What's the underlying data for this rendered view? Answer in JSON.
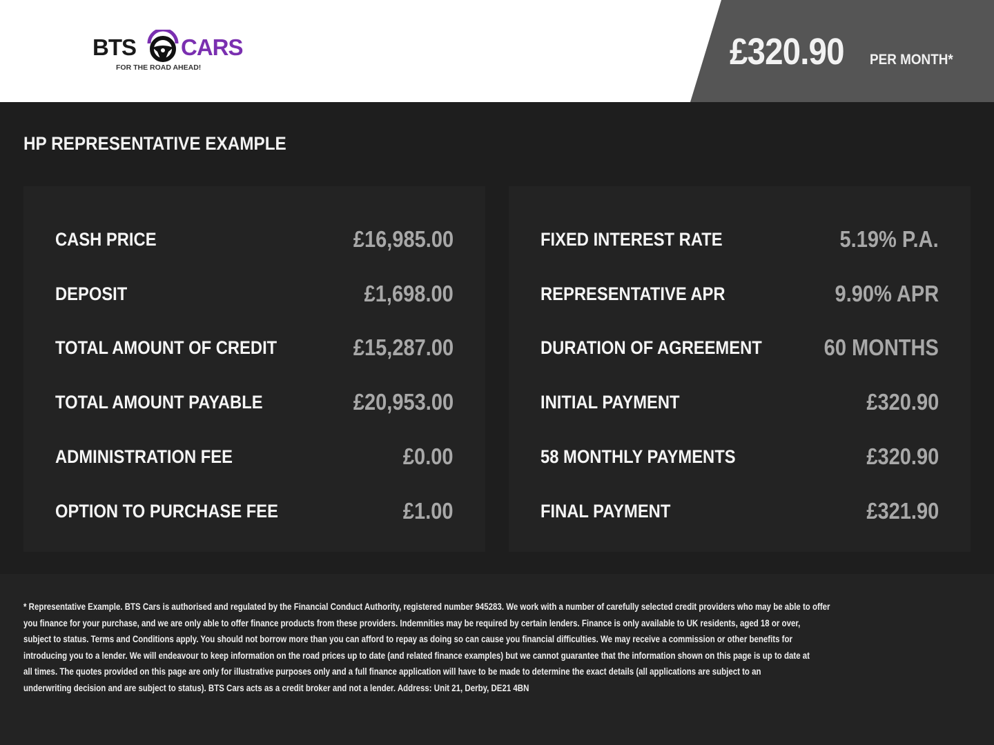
{
  "header": {
    "logo": {
      "brand_left": "BTS",
      "brand_right": "CARS",
      "tagline": "FOR THE ROAD AHEAD!",
      "icon": "steering-wheel-icon",
      "accent": "#7a2fb0"
    },
    "monthly_price": "£320.90",
    "per_month_label": "PER MONTH*"
  },
  "section_title": "HP REPRESENTATIVE EXAMPLE",
  "left_panel": [
    {
      "label": "CASH PRICE",
      "value": "£16,985.00"
    },
    {
      "label": "DEPOSIT",
      "value": "£1,698.00"
    },
    {
      "label": "TOTAL AMOUNT OF CREDIT",
      "value": "£15,287.00"
    },
    {
      "label": "TOTAL AMOUNT PAYABLE",
      "value": "£20,953.00"
    },
    {
      "label": "ADMINISTRATION FEE",
      "value": "£0.00"
    },
    {
      "label": "OPTION TO PURCHASE FEE",
      "value": "£1.00"
    }
  ],
  "right_panel": [
    {
      "label": "FIXED INTEREST RATE",
      "value": "5.19% P.A."
    },
    {
      "label": "REPRESENTATIVE APR",
      "value": "9.90% APR"
    },
    {
      "label": "DURATION OF AGREEMENT",
      "value": "60 MONTHS"
    },
    {
      "label": "INITIAL PAYMENT",
      "value": "£320.90"
    },
    {
      "label": "58 MONTHLY PAYMENTS",
      "value": "£320.90"
    },
    {
      "label": "FINAL PAYMENT",
      "value": "£321.90"
    }
  ],
  "disclaimer": [
    "* Representative Example. BTS Cars is authorised and regulated by the Financial Conduct Authority, registered number 945283. We work with a number of carefully selected credit providers who may be able to offer",
    "you finance for your purchase, and we are only able to offer finance products from these providers. Indemnities may be required by certain lenders. Finance is only available to UK residents, aged 18 or over,",
    "subject to status. Terms and Conditions apply. You should not borrow more than you can afford to repay as doing so can cause you financial difficulties. We may receive a commission or other benefits for",
    "introducing you to a lender. We will endeavour to keep information on the road prices up to date (and related finance examples) but we cannot guarantee that the information shown on this page is up to date at",
    "all times. The quotes provided on this page are only for illustrative purposes only and a full finance application will have to be made to determine the exact details (all applications are subject to an",
    "underwriting decision and are subject to status). BTS Cars acts as a credit broker and not a lender. Address: Unit 21, Derby, DE21 4BN"
  ]
}
